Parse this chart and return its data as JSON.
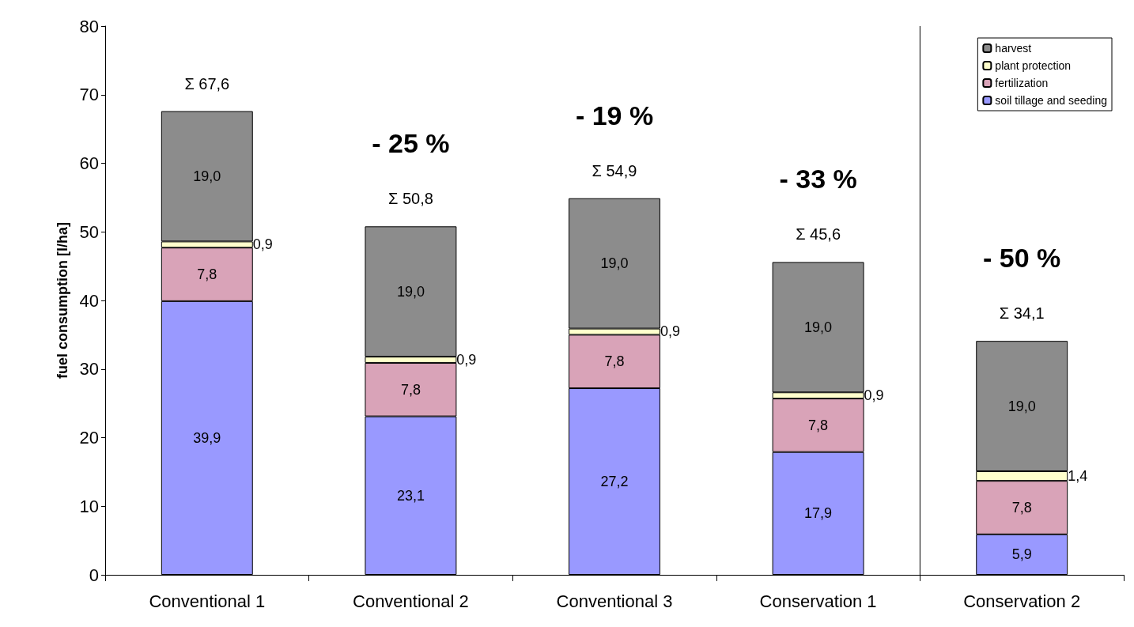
{
  "chart_data": {
    "type": "bar",
    "stacked": true,
    "ylabel": "fuel consumption [l/ha]",
    "categories": [
      "Conventional 1",
      "Conventional 2",
      "Conventional 3",
      "Conservation 1",
      "Conservation 2"
    ],
    "series": [
      {
        "name": "soil tillage and seeding",
        "color": "#9999ff",
        "values": [
          39.9,
          23.1,
          27.2,
          17.9,
          5.9
        ],
        "value_labels": [
          "39,9",
          "23,1",
          "27,2",
          "17,9",
          "5,9"
        ]
      },
      {
        "name": "fertilization",
        "color": "#d9a3b8",
        "values": [
          7.8,
          7.8,
          7.8,
          7.8,
          7.8
        ],
        "value_labels": [
          "7,8",
          "7,8",
          "7,8",
          "7,8",
          "7,8"
        ]
      },
      {
        "name": "plant protection",
        "color": "#ffffcc",
        "values": [
          0.9,
          0.9,
          0.9,
          0.9,
          1.4
        ],
        "value_labels": [
          "0,9",
          "0,9",
          "0,9",
          "0,9",
          "1,4"
        ]
      },
      {
        "name": "harvest",
        "color": "#8c8c8c",
        "values": [
          19.0,
          19.0,
          19.0,
          19.0,
          19.0
        ],
        "value_labels": [
          "19,0",
          "19,0",
          "19,0",
          "19,0",
          "19,0"
        ]
      }
    ],
    "totals": [
      "Σ 67,6",
      "Σ 50,8",
      "Σ 54,9",
      "Σ 45,6",
      "Σ 34,1"
    ],
    "annotations": [
      "- 25 %",
      "- 19 %",
      "- 33 %",
      "- 50 %"
    ],
    "ylim": [
      0,
      80
    ],
    "yticks": [
      0,
      10,
      20,
      30,
      40,
      50,
      60,
      70,
      80
    ],
    "grid": false,
    "legend": "top right"
  }
}
